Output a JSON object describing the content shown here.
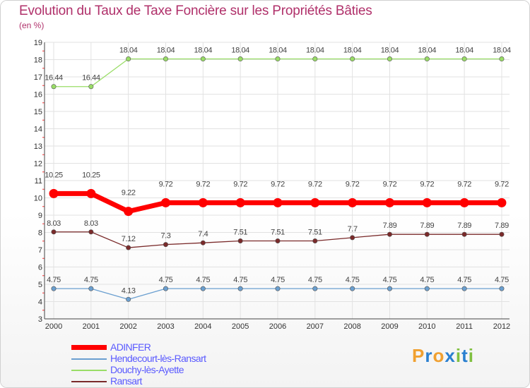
{
  "title": "Evolution du Taux de Taxe Foncière sur les Propriétés Bâties",
  "subtitle": "(en %)",
  "logo": {
    "letters": [
      "P",
      "r",
      "o",
      "x",
      "i",
      "t",
      "i"
    ],
    "colors": [
      "#f0a030",
      "#2a7fd0",
      "#f0a030",
      "#2a7fd0",
      "#80c040",
      "#2a7fd0",
      "#80c040"
    ]
  },
  "chart_data": {
    "type": "line",
    "title": "Evolution du Taux de Taxe Foncière sur les Propriétés Bâties",
    "ylabel": "(en %)",
    "ylim": [
      3,
      19
    ],
    "yticks": [
      3,
      4,
      5,
      6,
      7,
      8,
      9,
      10,
      11,
      12,
      13,
      14,
      15,
      16,
      17,
      18,
      19
    ],
    "x": [
      "2000",
      "2001",
      "2002",
      "2003",
      "2004",
      "2005",
      "2006",
      "2007",
      "2008",
      "2009",
      "2010",
      "2011",
      "2012"
    ],
    "grid": true,
    "legend_position": "bottom-left",
    "series": [
      {
        "name": "ADINFER",
        "color": "#ff0000",
        "values": [
          10.25,
          10.25,
          9.22,
          9.72,
          9.72,
          9.72,
          9.72,
          9.72,
          9.72,
          9.72,
          9.72,
          9.72,
          9.72
        ],
        "labels": [
          "10.25",
          "10.25",
          "9.22",
          "9.72",
          "9.72",
          "9.72",
          "9.72",
          "9.72",
          "9.72",
          "9.72",
          "9.72",
          "9.72",
          "9.72"
        ]
      },
      {
        "name": "Hendecourt-lès-Ransart",
        "color": "#6a9fd0",
        "values": [
          4.75,
          4.75,
          4.13,
          4.75,
          4.75,
          4.75,
          4.75,
          4.75,
          4.75,
          4.75,
          4.75,
          4.75,
          4.75
        ],
        "labels": [
          "4.75",
          "4.75",
          "4.13",
          "4.75",
          "4.75",
          "4.75",
          "4.75",
          "4.75",
          "4.75",
          "4.75",
          "4.75",
          "4.75",
          "4.75"
        ]
      },
      {
        "name": "Douchy-lès-Ayette",
        "color": "#99dd66",
        "values": [
          16.44,
          16.44,
          18.04,
          18.04,
          18.04,
          18.04,
          18.04,
          18.04,
          18.04,
          18.04,
          18.04,
          18.04,
          18.04
        ],
        "labels": [
          "16.44",
          "16.44",
          "18.04",
          "18.04",
          "18.04",
          "18.04",
          "18.04",
          "18.04",
          "18.04",
          "18.04",
          "18.04",
          "18.04",
          "18.04"
        ]
      },
      {
        "name": "Ransart",
        "color": "#7a2a2a",
        "values": [
          8.03,
          8.03,
          7.12,
          7.3,
          7.4,
          7.51,
          7.51,
          7.51,
          7.7,
          7.89,
          7.89,
          7.89,
          7.89
        ],
        "labels": [
          "8.03",
          "8.03",
          "7.12",
          "7.3",
          "7.4",
          "7.51",
          "7.51",
          "7.51",
          "7.7",
          "7.89",
          "7.89",
          "7.89",
          "7.89"
        ]
      }
    ]
  }
}
